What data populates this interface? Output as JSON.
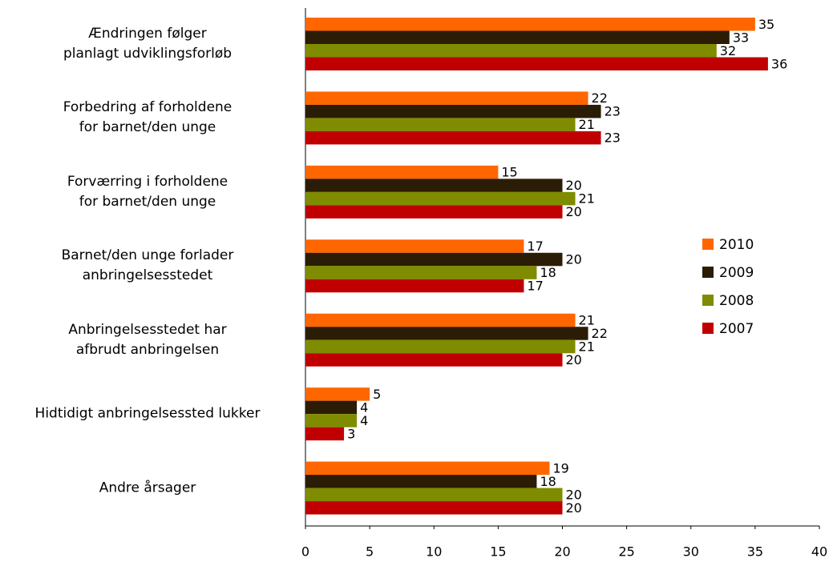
{
  "chart_data": {
    "type": "bar",
    "orientation": "horizontal",
    "categories": [
      "Ændringen følger\nplanlagt udviklingsforløb",
      "Forbedring af forholdene\nfor barnet/den unge",
      "Forværring i forholdene\nfor barnet/den unge",
      "Barnet/den unge forlader\nanbringelsesstedet",
      "Anbringelsesstedet har\nafbrudt anbringelsen",
      "Hidtidigt anbringelsessted lukker",
      "Andre årsager"
    ],
    "series": [
      {
        "name": "2010",
        "color": "#ff6600",
        "values": [
          35,
          22,
          15,
          17,
          21,
          5,
          19
        ]
      },
      {
        "name": "2009",
        "color": "#2b1d05",
        "values": [
          33,
          23,
          20,
          20,
          22,
          4,
          18
        ]
      },
      {
        "name": "2008",
        "color": "#7f8c00",
        "values": [
          32,
          21,
          21,
          18,
          21,
          4,
          20
        ]
      },
      {
        "name": "2007",
        "color": "#c00000",
        "values": [
          36,
          23,
          20,
          17,
          20,
          3,
          20
        ]
      }
    ],
    "xlim": [
      0,
      40
    ],
    "xticks": [
      0,
      5,
      10,
      15,
      20,
      25,
      30,
      35,
      40
    ],
    "grid": false,
    "legend": "right"
  }
}
